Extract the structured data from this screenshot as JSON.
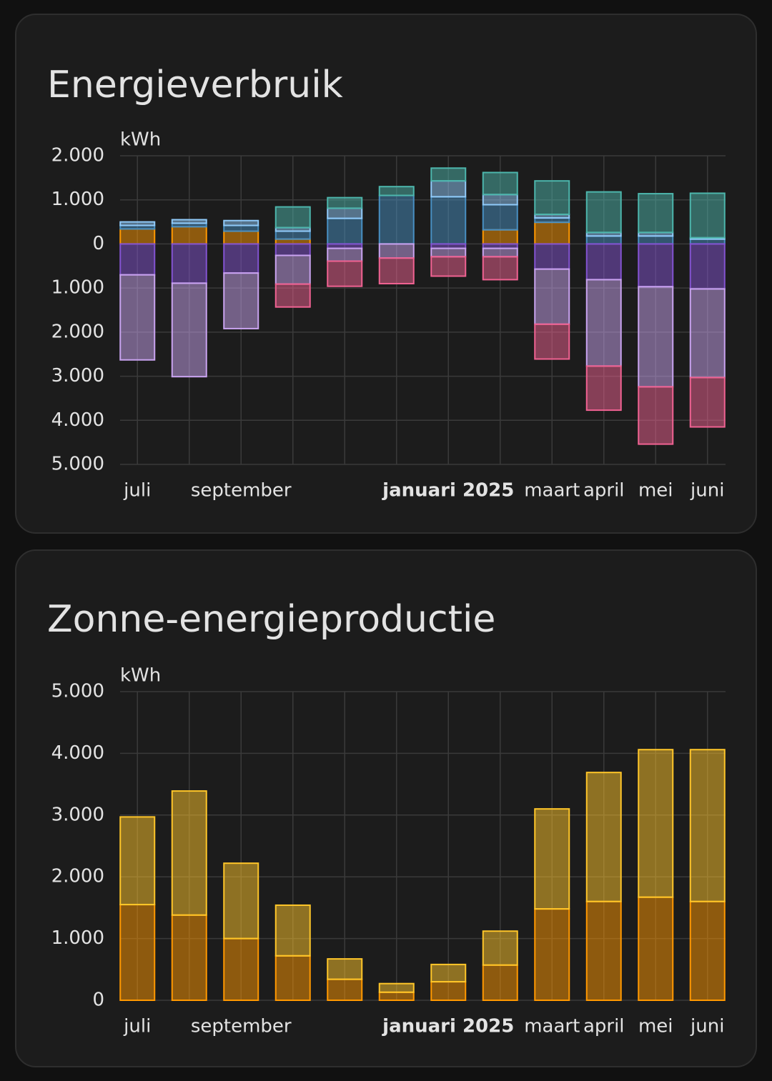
{
  "chart_data": [
    {
      "type": "bar",
      "stacked": true,
      "title": "Energieverbruik",
      "ylabel": "kWh",
      "categories": [
        "juli",
        null,
        "september",
        null,
        null,
        null,
        "januari 2025",
        null,
        "maart",
        "april",
        "mei",
        "juni"
      ],
      "series": [
        {
          "color": "#ff9800",
          "values": [
            340,
            390,
            290,
            110,
            0,
            0,
            0,
            320,
            490,
            0,
            0,
            0
          ]
        },
        {
          "color": "#488fc2",
          "values": [
            80,
            80,
            130,
            180,
            580,
            1100,
            1070,
            570,
            100,
            180,
            180,
            110
          ]
        },
        {
          "color": "#90caf9",
          "values": [
            80,
            80,
            110,
            80,
            230,
            0,
            360,
            230,
            80,
            80,
            80,
            30
          ]
        },
        {
          "color": "#4db6ac",
          "values": [
            0,
            0,
            0,
            470,
            240,
            200,
            290,
            500,
            760,
            920,
            880,
            1010
          ]
        },
        {
          "color": "#8353d1",
          "values": [
            -700,
            -890,
            -660,
            -260,
            -100,
            0,
            -100,
            -100,
            -570,
            -810,
            -970,
            -1020
          ]
        },
        {
          "color": "#c9a3f0",
          "values": [
            -1930,
            -2120,
            -1260,
            -650,
            -290,
            -320,
            -190,
            -190,
            -1250,
            -1960,
            -2270,
            -2010
          ]
        },
        {
          "color": "#f06292",
          "values": [
            0,
            0,
            0,
            -520,
            -570,
            -580,
            -440,
            -520,
            -790,
            -1000,
            -1300,
            -1120
          ]
        }
      ],
      "ylim": [
        -5000,
        2000
      ],
      "yticks": [
        {
          "value": 2000,
          "label": "2.000"
        },
        {
          "value": 1000,
          "label": "1.000"
        },
        0,
        {
          "value": -1000,
          "label": "1.000"
        },
        {
          "value": -2000,
          "label": "2.000"
        },
        {
          "value": -3000,
          "label": "3.000"
        },
        {
          "value": -4000,
          "label": "4.000"
        },
        {
          "value": -5000,
          "label": "5.000"
        }
      ],
      "grid": true
    },
    {
      "type": "bar",
      "stacked": true,
      "title": "Zonne-energieproductie",
      "ylabel": "kWh",
      "categories": [
        "juli",
        null,
        "september",
        null,
        null,
        null,
        "januari 2025",
        null,
        "maart",
        "april",
        "mei",
        "juni"
      ],
      "series": [
        {
          "color": "#ff9800",
          "values": [
            1550,
            1380,
            1000,
            720,
            340,
            130,
            300,
            570,
            1480,
            1600,
            1670,
            1600
          ]
        },
        {
          "color": "#ffc629",
          "values": [
            1420,
            2010,
            1220,
            820,
            330,
            140,
            280,
            550,
            1620,
            2090,
            2390,
            2460
          ]
        }
      ],
      "ylim": [
        0,
        5000
      ],
      "yticks": [
        0,
        {
          "value": 1000,
          "label": "1.000"
        },
        {
          "value": 2000,
          "label": "2.000"
        },
        {
          "value": 3000,
          "label": "3.000"
        },
        {
          "value": 4000,
          "label": "4.000"
        },
        {
          "value": 5000,
          "label": "5.000"
        }
      ],
      "grid": true
    }
  ]
}
